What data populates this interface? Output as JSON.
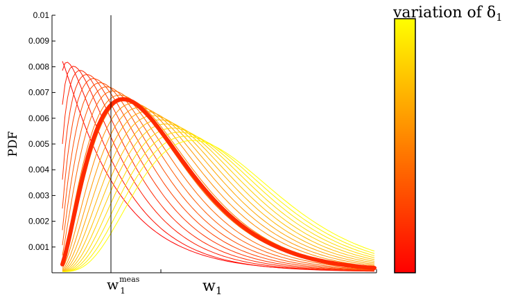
{
  "chart_data": {
    "type": "line",
    "ylabel": "PDF",
    "xlabel": "w",
    "xlabel_sub": "1",
    "marker_label": "w",
    "marker_sub": "1",
    "marker_sup": "meas",
    "colorbar_title": "variation of δ",
    "colorbar_title_sub": "1",
    "ylim": [
      0,
      0.01
    ],
    "yticks": [
      "0.001",
      "0.002",
      "0.003",
      "0.004",
      "0.005",
      "0.006",
      "0.007",
      "0.008",
      "0.009",
      "0.01"
    ],
    "colors": {
      "low": "#ff0000",
      "high": "#ffff00",
      "highlight": "#ff2a00"
    },
    "highlight_index": 5,
    "series_count": 21
  }
}
